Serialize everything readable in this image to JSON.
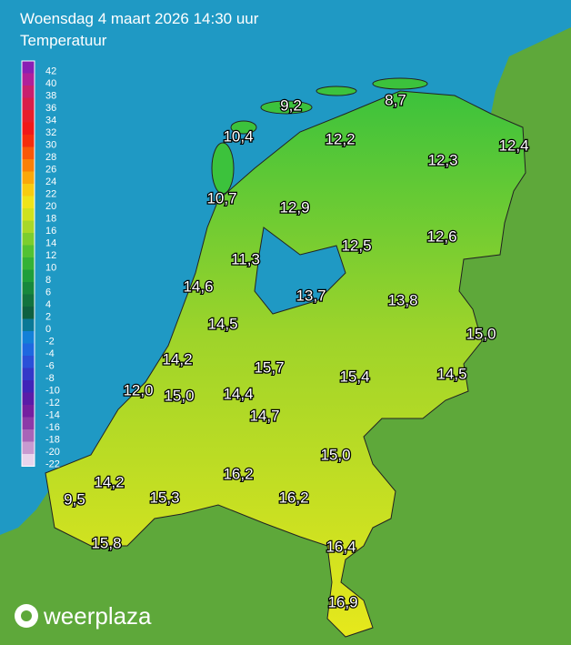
{
  "header": {
    "title": "Woensdag 4 maart 2026 14:30 uur",
    "subtitle": "Temperatuur"
  },
  "legend": {
    "labels": [
      42,
      40,
      38,
      36,
      34,
      32,
      30,
      28,
      26,
      24,
      22,
      20,
      18,
      16,
      14,
      12,
      10,
      8,
      6,
      4,
      2,
      0,
      -2,
      -4,
      -6,
      -8,
      -10,
      -12,
      -14,
      -16,
      -18,
      -20,
      -22
    ],
    "colors": [
      "#8a1fb4",
      "#b0209a",
      "#c8206e",
      "#d81e4a",
      "#e81e2a",
      "#f01818",
      "#f52d0c",
      "#f85808",
      "#fa8006",
      "#fba80a",
      "#f8cc10",
      "#eee41a",
      "#cfe21e",
      "#a8d828",
      "#7cce2e",
      "#52c232",
      "#34b236",
      "#1f9e3a",
      "#17883c",
      "#12733e",
      "#0e6040",
      "#0a7896",
      "#1280d8",
      "#1e68e0",
      "#2a50d8",
      "#3438c8",
      "#4024b8",
      "#5a1ca8",
      "#7420a0",
      "#8c3aa8",
      "#a864b8",
      "#c89ad0",
      "#e8d4ec"
    ]
  },
  "stations": [
    "9,2",
    "8,7",
    "10,4",
    "12,2",
    "12,4",
    "12,3",
    "10,7",
    "12,9",
    "12,5",
    "12,6",
    "11,3",
    "14,6",
    "13,7",
    "13,8",
    "14,5",
    "15,0",
    "14,2",
    "15,7",
    "15,4",
    "14,5",
    "12,0",
    "15,0",
    "14,4",
    "14,7",
    "15,0",
    "16,2",
    "14,2",
    "16,2",
    "9,5",
    "15,3",
    "15,8",
    "16,4",
    "16,9"
  ],
  "logo": "weerplaza"
}
